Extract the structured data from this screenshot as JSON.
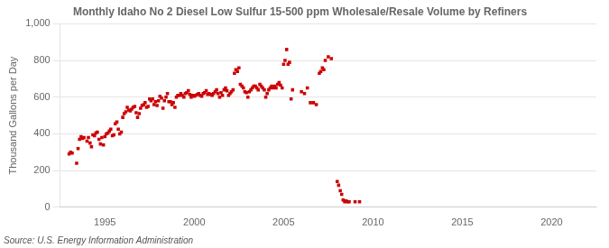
{
  "chart_data": {
    "type": "scatter",
    "title": "Monthly Idaho No 2 Diesel Low Sulfur 15-500 ppm Wholesale/Resale Volume by Refiners",
    "ylabel": "Thousand Gallons per Day",
    "annotation": "Source: U.S. Energy Information Administration",
    "color": "#cc0000",
    "marker": "square",
    "grid": "y",
    "xlim": [
      1992.5,
      2022.5
    ],
    "xticks": [
      1995,
      2000,
      2005,
      2010,
      2015,
      2020
    ],
    "ylim": [
      0,
      1000
    ],
    "yticks": [
      0,
      200,
      400,
      600,
      800,
      {
        "value": 1000,
        "label": "1,000"
      }
    ],
    "x": [
      1993.0,
      1993.08,
      1993.17,
      1993.42,
      1993.5,
      1993.58,
      1993.67,
      1993.75,
      1993.83,
      1994.0,
      1994.08,
      1994.17,
      1994.25,
      1994.33,
      1994.42,
      1994.5,
      1994.58,
      1994.67,
      1994.75,
      1994.83,
      1994.92,
      1995.0,
      1995.08,
      1995.17,
      1995.25,
      1995.33,
      1995.42,
      1995.5,
      1995.58,
      1995.67,
      1995.75,
      1995.83,
      1995.92,
      1996.0,
      1996.08,
      1996.17,
      1996.25,
      1996.33,
      1996.42,
      1996.5,
      1996.58,
      1996.67,
      1996.75,
      1996.83,
      1996.92,
      1997.0,
      1997.08,
      1997.17,
      1997.25,
      1997.33,
      1997.42,
      1997.5,
      1997.58,
      1997.67,
      1997.75,
      1997.83,
      1997.92,
      1998.0,
      1998.08,
      1998.17,
      1998.25,
      1998.33,
      1998.42,
      1998.5,
      1998.58,
      1998.67,
      1998.75,
      1998.83,
      1998.92,
      1999.0,
      1999.08,
      1999.17,
      1999.25,
      1999.33,
      1999.42,
      1999.5,
      1999.58,
      1999.67,
      1999.75,
      1999.83,
      1999.92,
      2000.0,
      2000.08,
      2000.17,
      2000.25,
      2000.33,
      2000.42,
      2000.5,
      2000.58,
      2000.67,
      2000.75,
      2000.83,
      2000.92,
      2001.0,
      2001.08,
      2001.17,
      2001.25,
      2001.33,
      2001.42,
      2001.5,
      2001.58,
      2001.67,
      2001.75,
      2001.83,
      2001.92,
      2002.0,
      2002.08,
      2002.17,
      2002.25,
      2002.33,
      2002.42,
      2002.5,
      2002.58,
      2002.67,
      2002.75,
      2002.83,
      2002.92,
      2003.0,
      2003.08,
      2003.17,
      2003.25,
      2003.33,
      2003.42,
      2003.5,
      2003.58,
      2003.67,
      2003.75,
      2003.83,
      2003.92,
      2004.0,
      2004.08,
      2004.17,
      2004.25,
      2004.33,
      2004.42,
      2004.5,
      2004.58,
      2004.67,
      2004.75,
      2004.83,
      2004.92,
      2005.0,
      2005.08,
      2005.17,
      2005.25,
      2005.33,
      2005.42,
      2005.5,
      2006.0,
      2006.17,
      2006.33,
      2006.5,
      2006.67,
      2006.83,
      2007.0,
      2007.08,
      2007.17,
      2007.25,
      2007.33,
      2007.5,
      2007.67,
      2008.0,
      2008.08,
      2008.17,
      2008.25,
      2008.33,
      2008.42,
      2008.5,
      2008.58,
      2008.67,
      2009.0,
      2009.25
    ],
    "values": [
      290,
      300,
      295,
      240,
      320,
      370,
      385,
      375,
      380,
      360,
      380,
      350,
      330,
      395,
      390,
      405,
      410,
      370,
      345,
      380,
      340,
      385,
      400,
      405,
      415,
      425,
      390,
      395,
      455,
      465,
      425,
      400,
      410,
      490,
      510,
      520,
      545,
      530,
      525,
      535,
      545,
      550,
      515,
      490,
      510,
      540,
      555,
      560,
      570,
      545,
      550,
      590,
      580,
      590,
      560,
      575,
      555,
      580,
      605,
      595,
      540,
      580,
      600,
      620,
      575,
      575,
      560,
      570,
      545,
      600,
      610,
      610,
      620,
      610,
      600,
      620,
      625,
      635,
      615,
      600,
      610,
      605,
      610,
      615,
      620,
      610,
      605,
      620,
      625,
      635,
      615,
      620,
      615,
      610,
      620,
      630,
      640,
      620,
      600,
      625,
      610,
      640,
      650,
      635,
      610,
      620,
      630,
      640,
      730,
      750,
      740,
      760,
      670,
      660,
      650,
      630,
      625,
      600,
      630,
      640,
      650,
      660,
      660,
      650,
      640,
      670,
      660,
      650,
      640,
      600,
      620,
      640,
      650,
      660,
      650,
      660,
      650,
      670,
      680,
      665,
      650,
      780,
      800,
      860,
      780,
      790,
      590,
      640,
      630,
      620,
      650,
      570,
      570,
      560,
      730,
      740,
      760,
      750,
      800,
      820,
      810,
      140,
      120,
      90,
      70,
      40,
      30,
      35,
      30,
      30,
      30,
      30
    ]
  }
}
